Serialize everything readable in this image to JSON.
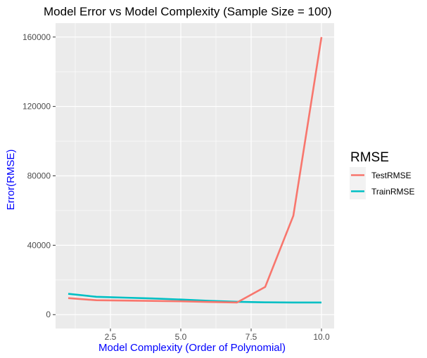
{
  "chart_data": {
    "type": "line",
    "title": "Model Error vs Model Complexity (Sample Size = 100)",
    "xlabel": "Model Complexity (Order of Polynomial)",
    "ylabel": "Error(RMSE)",
    "xlim": [
      0.55,
      10.45
    ],
    "ylim": [
      -8000,
      168000
    ],
    "x_ticks": [
      2.5,
      5.0,
      7.5,
      10.0
    ],
    "x_tick_labels": [
      "2.5",
      "5.0",
      "7.5",
      "10.0"
    ],
    "y_ticks": [
      0,
      40000,
      80000,
      120000,
      160000
    ],
    "y_tick_labels": [
      "0",
      "40000",
      "80000",
      "120000",
      "160000"
    ],
    "grid": true,
    "legend_title": "RMSE",
    "legend_position": "right",
    "x": [
      1,
      2,
      3,
      4,
      5,
      6,
      7,
      8,
      9,
      10
    ],
    "series": [
      {
        "name": "TestRMSE",
        "color": "#f8766d",
        "values": [
          9500,
          8300,
          8100,
          7900,
          7700,
          7300,
          7000,
          16000,
          57000,
          160000
        ]
      },
      {
        "name": "TrainRMSE",
        "color": "#00bfc4",
        "values": [
          12000,
          10300,
          9800,
          9300,
          8700,
          8000,
          7400,
          7100,
          7000,
          7000
        ]
      }
    ]
  },
  "colors": {
    "panel_background": "#ebebeb",
    "grid_major": "#ffffff",
    "axis_title": "#0000ff",
    "tick_label": "#4d4d4d"
  }
}
